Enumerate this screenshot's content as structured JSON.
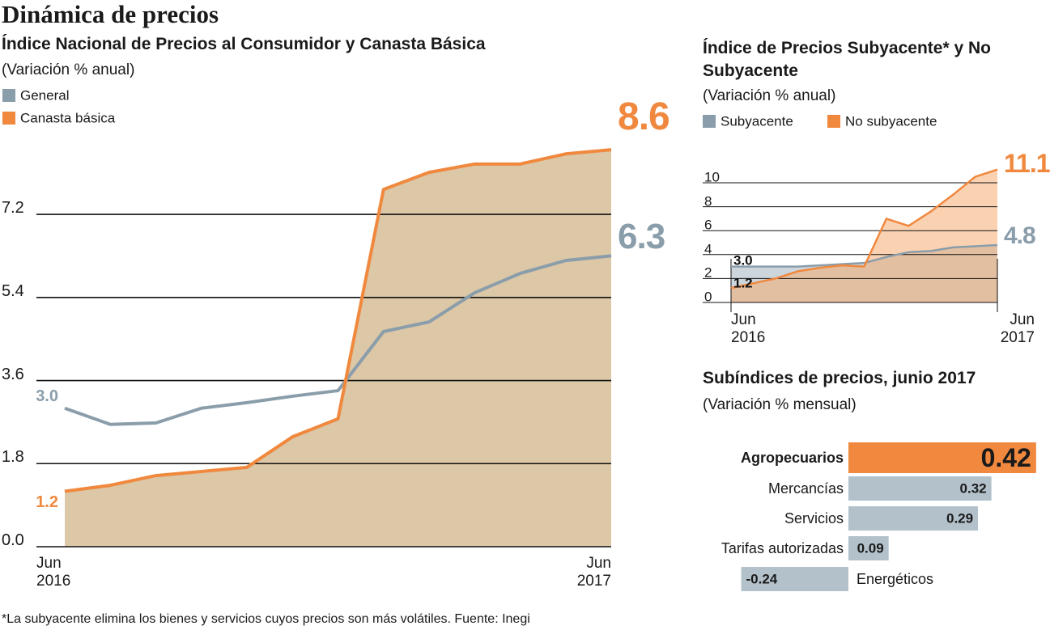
{
  "title": "Dinámica de precios",
  "footnote": "*La subyacente elimina los bienes y servicios cuyos precios son más volátiles. Fuente: Inegi",
  "chart_data": [
    {
      "type": "line",
      "title": "Índice Nacional de Precios al Consumidor y Canasta Básica",
      "subtitle": "(Variación % anual)",
      "categories": [
        "Jun 2016",
        null,
        null,
        null,
        null,
        null,
        null,
        null,
        null,
        null,
        null,
        null,
        "Jun 2017"
      ],
      "series": [
        {
          "name": "General",
          "color": "#8a9daa",
          "values": [
            3.0,
            2.65,
            2.68,
            3.0,
            3.12,
            3.26,
            3.38,
            4.66,
            4.87,
            5.5,
            5.92,
            6.2,
            6.3
          ],
          "value_labels": [
            "3.0",
            null,
            null,
            null,
            null,
            null,
            null,
            null,
            null,
            null,
            null,
            null,
            "6.3"
          ]
        },
        {
          "name": "Canasta básica",
          "color": "#f0883e",
          "values": [
            1.2,
            1.33,
            1.54,
            1.63,
            1.72,
            2.38,
            2.77,
            7.74,
            8.11,
            8.29,
            8.29,
            8.51,
            8.6
          ],
          "value_labels": [
            "1.2",
            null,
            null,
            null,
            null,
            null,
            null,
            null,
            null,
            null,
            null,
            null,
            "8.6"
          ]
        }
      ],
      "ylim": [
        0,
        9
      ],
      "yticks": [
        {
          "value": 0,
          "label": "0.0"
        },
        1.8,
        3.6,
        5.4,
        7.2
      ],
      "grid": true,
      "legend": "upper left"
    },
    {
      "type": "area",
      "title": "Índice de Precios Subyacente* y No Subyacente",
      "subtitle": "(Variación % anual)",
      "categories": [
        "Jun 2016",
        null,
        null,
        null,
        null,
        null,
        null,
        null,
        null,
        null,
        null,
        null,
        "Jun 2017"
      ],
      "series": [
        {
          "name": "Subyacente",
          "color": "#8a9daa",
          "values": [
            3.0,
            3.0,
            3.0,
            3.0,
            3.1,
            3.2,
            3.3,
            3.8,
            4.2,
            4.3,
            4.6,
            4.7,
            4.8
          ],
          "value_labels": [
            "3.0",
            null,
            null,
            null,
            null,
            null,
            null,
            null,
            null,
            null,
            null,
            null,
            "4.8"
          ]
        },
        {
          "name": "No subyacente",
          "color": "#f0883e",
          "values": [
            1.2,
            1.6,
            2.0,
            2.6,
            2.9,
            3.1,
            3.0,
            7.0,
            6.4,
            7.6,
            9.0,
            10.5,
            11.1
          ],
          "value_labels": [
            "1.2",
            null,
            null,
            null,
            null,
            null,
            null,
            null,
            null,
            null,
            null,
            null,
            "11.1"
          ]
        }
      ],
      "ylim": [
        0,
        12
      ],
      "yticks": [
        0,
        2,
        4,
        6,
        8,
        10
      ],
      "grid": true,
      "legend": "top"
    },
    {
      "type": "bar",
      "orientation": "horizontal",
      "title": "Subíndices de precios, junio 2017",
      "subtitle": "(Variación % mensual)",
      "categories": [
        "Agropecuarios",
        "Mercancías",
        "Servicios",
        "Tarifas autorizadas",
        "Energéticos"
      ],
      "values": [
        0.42,
        0.32,
        0.29,
        0.09,
        -0.24
      ],
      "colors": [
        "#f0883e",
        "#b3c1cb",
        "#b3c1cb",
        "#b3c1cb",
        "#b3c1cb"
      ]
    }
  ]
}
